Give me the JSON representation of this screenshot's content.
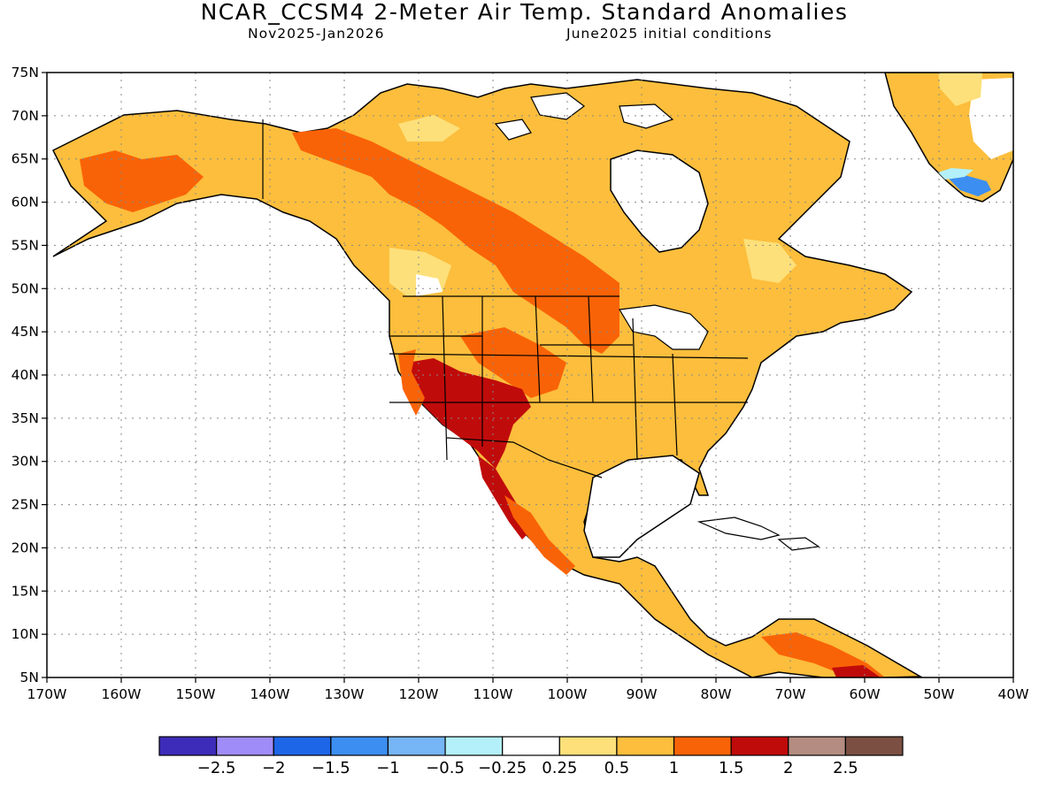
{
  "header": {
    "title": "NCAR_CCSM4 2-Meter Air Temp. Standard Anomalies",
    "period": "Nov2025-Jan2026",
    "init": "June2025 initial conditions"
  },
  "map": {
    "lon_range": [
      -170,
      -40
    ],
    "lat_range": [
      5,
      75
    ],
    "lat_labels": [
      "5N",
      "10N",
      "15N",
      "20N",
      "25N",
      "30N",
      "35N",
      "40N",
      "45N",
      "50N",
      "55N",
      "60N",
      "65N",
      "70N",
      "75N"
    ],
    "lon_labels": [
      "170W",
      "160W",
      "150W",
      "140W",
      "130W",
      "120W",
      "110W",
      "100W",
      "90W",
      "80W",
      "70W",
      "60W",
      "50W",
      "40W"
    ],
    "gridlines": "dotted",
    "land_default_color": "#fcbe3c",
    "regions": [
      {
        "name": "alaska",
        "color": "#f96307"
      },
      {
        "name": "nw-canada",
        "color": "#f96307"
      },
      {
        "name": "southwest-us",
        "color": "#c00b0b"
      },
      {
        "name": "mexico-west",
        "color": "#c00b0b"
      },
      {
        "name": "northern-plains",
        "color": "#f96307"
      },
      {
        "name": "venezuela",
        "color": "#f96307"
      },
      {
        "name": "greenland-south",
        "color": "#3c8ef0"
      }
    ]
  },
  "legend": {
    "colors": [
      "#3d2cb9",
      "#a08cf8",
      "#1e66e8",
      "#3c8ef0",
      "#76b5f6",
      "#b4f0fa",
      "#ffffff",
      "#fde07a",
      "#fcbe3c",
      "#f96307",
      "#c00b0b",
      "#b48c82",
      "#7b5042"
    ],
    "labels": [
      "-2.5",
      "-2",
      "-1.5",
      "-1",
      "-0.5",
      "-0.25",
      "0.25",
      "0.5",
      "1",
      "1.5",
      "2",
      "2.5"
    ]
  }
}
